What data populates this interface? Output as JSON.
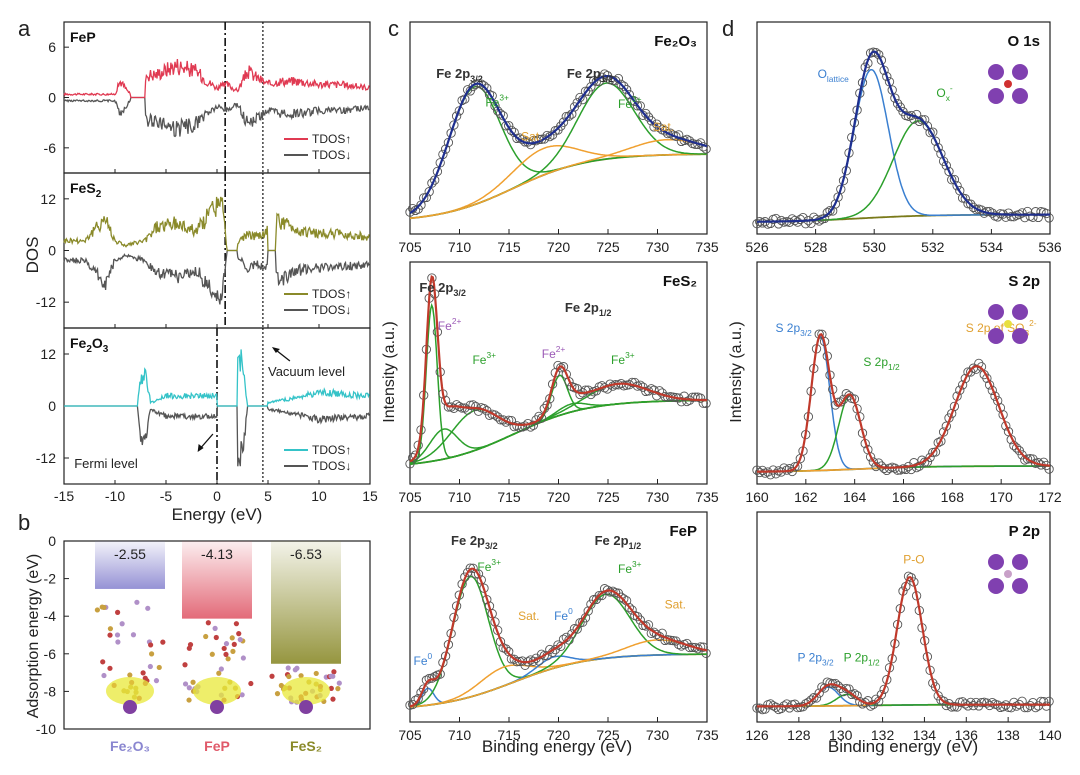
{
  "panel_letters": {
    "a": "a",
    "b": "b",
    "c": "c",
    "d": "d"
  },
  "dos_axis": {
    "ylabel": "DOS",
    "xlabel": "Energy (eV)"
  },
  "xps_axis": {
    "xlabel": "Binding energy (eV)",
    "ylabel": "Intensity (a.u.)"
  },
  "colors": {
    "FeP": "#e03a52",
    "FeS2": "#8a8a2a",
    "Fe2O3": "#35c3c8",
    "down": "#555555",
    "fit_navy": "#1f2f8f",
    "fit_red": "#c0392b",
    "comp_green": "#2ca02c",
    "comp_blue": "#3a7fd0",
    "comp_orange": "#f0a030",
    "bg_olive": "#7a7a1a",
    "lbl_green": "#2ca02c",
    "lbl_orange": "#e0a030",
    "lbl_purple": "#9b59b6",
    "lbl_blue": "#3a7fd0",
    "bar_b1": "#8a86d0",
    "bar_b2": "#e05a6a",
    "bar_b3": "#8a8a2a"
  },
  "chart_data": [
    {
      "id": "a1",
      "type": "line",
      "panel": "a",
      "label": "FeP",
      "xlim": [
        -15,
        15
      ],
      "ylim": [
        -9,
        9
      ],
      "yticks": [
        6,
        0,
        -6
      ],
      "xticks": [],
      "series": [
        {
          "name": "TDOS↑",
          "sign": 1
        },
        {
          "name": "TDOS↓",
          "sign": -1
        }
      ],
      "envelope": {
        "x": [
          -10,
          -9.5,
          -8.5,
          -7,
          -6,
          -4,
          -2,
          -1,
          0,
          1,
          2,
          3,
          4,
          5,
          6,
          8,
          10,
          12,
          15
        ],
        "y": [
          0.5,
          2.5,
          0.5,
          3.5,
          3.5,
          5,
          4,
          2.5,
          1.5,
          2,
          1,
          4,
          3,
          2,
          2.5,
          2.5,
          2,
          2,
          1.5
        ]
      },
      "gaps": [
        [
          -8.5,
          -7
        ]
      ],
      "vlines": [
        0.8,
        4.5
      ]
    },
    {
      "id": "a2",
      "type": "line",
      "panel": "a",
      "label": "FeS2",
      "xlim": [
        -15,
        15
      ],
      "ylim": [
        -18,
        18
      ],
      "yticks": [
        12,
        0,
        -12
      ],
      "xticks": [],
      "series": [
        {
          "name": "TDOS↑",
          "sign": 1
        },
        {
          "name": "TDOS↓",
          "sign": -1
        }
      ],
      "envelope": {
        "x": [
          -13,
          -12,
          -11,
          -10,
          -9,
          -7,
          -6,
          -4,
          -2,
          0,
          0.5,
          1,
          2,
          3,
          4,
          5,
          6,
          8,
          10,
          12,
          15
        ],
        "y": [
          3,
          6,
          10,
          3,
          1.5,
          3,
          7,
          8,
          6,
          14,
          14,
          0,
          2,
          5,
          4,
          6,
          9,
          6,
          5,
          5,
          4
        ]
      },
      "gaps": [
        [
          1,
          2
        ],
        [
          5,
          5.8
        ]
      ],
      "vlines": [
        0.8,
        4.5
      ]
    },
    {
      "id": "a3",
      "type": "line",
      "panel": "a",
      "label": "Fe2O3",
      "xlim": [
        -15,
        15
      ],
      "ylim": [
        -18,
        18
      ],
      "yticks": [
        12,
        0,
        -12
      ],
      "xticks": [
        -15,
        -10,
        -5,
        0,
        5,
        10,
        15
      ],
      "series": [
        {
          "name": "TDOS↑",
          "sign": 1
        },
        {
          "name": "TDOS↓",
          "sign": -1
        }
      ],
      "envelope": {
        "x": [
          -7.8,
          -7.5,
          -7,
          -6.5,
          -5,
          -3,
          -1,
          0,
          2,
          2.5,
          3,
          4,
          5,
          7,
          10,
          15
        ],
        "y": [
          0,
          9,
          9,
          1,
          3,
          3,
          3,
          3,
          14,
          14,
          0,
          0,
          1,
          2,
          4,
          3
        ]
      },
      "gaps": [
        [
          -15,
          -7.8
        ],
        [
          0,
          2
        ],
        [
          3,
          5
        ]
      ],
      "vlines": [
        0,
        4.5
      ],
      "annotations": [
        "Vacuum level",
        "Fermi level"
      ]
    },
    {
      "id": "b",
      "type": "bar",
      "panel": "b",
      "ylabel": "Adsorption energy (eV)",
      "ylim": [
        -10,
        0
      ],
      "yticks": [
        0,
        -2,
        -4,
        -6,
        -8,
        -10
      ],
      "categories": [
        "Fe2O3",
        "FeP",
        "FeS2"
      ],
      "category_labels": [
        "Fe₂O₃",
        "FeP",
        "FeS₂"
      ],
      "value_labels": [
        "-2.55",
        "-4.13",
        "-6.53"
      ],
      "values": [
        -2.55,
        -4.13,
        -6.53
      ]
    },
    {
      "id": "c1",
      "type": "scatter",
      "panel": "c",
      "label": "Fe₂O₃",
      "fit": "navy",
      "xlim": [
        705,
        735
      ],
      "xticks": [
        705,
        710,
        715,
        720,
        725,
        730,
        735
      ],
      "peaks": [
        {
          "c": 711.5,
          "w": 2.6,
          "a": 0.62,
          "color": "green"
        },
        {
          "c": 718.5,
          "w": 3.2,
          "a": 0.14,
          "color": "orange"
        },
        {
          "c": 724.8,
          "w": 2.8,
          "a": 0.4,
          "color": "green"
        },
        {
          "c": 731,
          "w": 3.5,
          "a": 0.08,
          "color": "orange"
        }
      ],
      "bg": {
        "start": 0.02,
        "end": 0.38
      },
      "labels": [
        {
          "text": "Fe 2p",
          "sub": "3/2",
          "x": 710,
          "y": 0.78,
          "color": "#333"
        },
        {
          "text": "Fe",
          "sup": "3+",
          "x": 713.8,
          "y": 0.63,
          "color": "green"
        },
        {
          "text": "Sat.",
          "x": 717.3,
          "y": 0.45,
          "color": "orange"
        },
        {
          "text": "Fe 2p",
          "sub": "1/2",
          "x": 723.2,
          "y": 0.78,
          "color": "#333"
        },
        {
          "text": "Fe",
          "sup": "3+",
          "x": 727.2,
          "y": 0.62,
          "color": "green"
        },
        {
          "text": "Sat.",
          "x": 730.6,
          "y": 0.5,
          "color": "orange"
        }
      ]
    },
    {
      "id": "c2",
      "type": "scatter",
      "panel": "c",
      "label": "FeS₂",
      "fit": "red",
      "xlim": [
        705,
        735
      ],
      "xticks": [
        705,
        710,
        715,
        720,
        725,
        730,
        735
      ],
      "peaks": [
        {
          "c": 707.2,
          "w": 0.55,
          "a": 0.78,
          "color": "green"
        },
        {
          "c": 708.4,
          "w": 1.4,
          "a": 0.15,
          "color": "green"
        },
        {
          "c": 711.5,
          "w": 2.4,
          "a": 0.2,
          "color": "green"
        },
        {
          "c": 720.1,
          "w": 0.8,
          "a": 0.2,
          "color": "green"
        },
        {
          "c": 721.3,
          "w": 1.4,
          "a": 0.04,
          "color": "green"
        },
        {
          "c": 726,
          "w": 3,
          "a": 0.1,
          "color": "green"
        }
      ],
      "bg": {
        "start": 0.04,
        "end": 0.38
      },
      "labels": [
        {
          "text": "Fe 2p",
          "sub": "3/2",
          "x": 708.3,
          "y": 0.92,
          "color": "#333"
        },
        {
          "text": "Fe",
          "sup": "2+",
          "x": 709,
          "y": 0.73,
          "color": "purple"
        },
        {
          "text": "Fe",
          "sup": "3+",
          "x": 712.5,
          "y": 0.56,
          "color": "green"
        },
        {
          "text": "Fe 2p",
          "sub": "1/2",
          "x": 723,
          "y": 0.82,
          "color": "#333"
        },
        {
          "text": "Fe",
          "sup": "2+",
          "x": 719.5,
          "y": 0.59,
          "color": "purple"
        },
        {
          "text": "Fe",
          "sup": "3+",
          "x": 726.5,
          "y": 0.56,
          "color": "green"
        }
      ]
    },
    {
      "id": "c3",
      "type": "scatter",
      "panel": "c",
      "label": "FeP",
      "fit": "red",
      "xlim": [
        705,
        735
      ],
      "xticks": [
        705,
        710,
        715,
        720,
        725,
        730,
        735
      ],
      "peaks": [
        {
          "c": 706.8,
          "w": 0.6,
          "a": 0.09,
          "color": "blue"
        },
        {
          "c": 711.1,
          "w": 1.8,
          "a": 0.64,
          "color": "green"
        },
        {
          "c": 714.4,
          "w": 2.4,
          "a": 0.1,
          "color": "orange"
        },
        {
          "c": 719.5,
          "w": 1.6,
          "a": 0.06,
          "color": "blue"
        },
        {
          "c": 724.8,
          "w": 2.4,
          "a": 0.34,
          "color": "green"
        },
        {
          "c": 730,
          "w": 3,
          "a": 0.08,
          "color": "orange"
        }
      ],
      "bg": {
        "start": 0.02,
        "end": 0.32
      },
      "labels": [
        {
          "text": "Fe 2p",
          "sub": "3/2",
          "x": 711.5,
          "y": 0.9,
          "color": "#333"
        },
        {
          "text": "Fe",
          "sup": "3+",
          "x": 713,
          "y": 0.76,
          "color": "green"
        },
        {
          "text": "Sat.",
          "x": 717,
          "y": 0.5,
          "color": "orange"
        },
        {
          "text": "Fe",
          "sup": "0",
          "x": 720.5,
          "y": 0.5,
          "color": "blue"
        },
        {
          "text": "Fe 2p",
          "sub": "1/2",
          "x": 726,
          "y": 0.9,
          "color": "#333"
        },
        {
          "text": "Fe",
          "sup": "3+",
          "x": 727.2,
          "y": 0.75,
          "color": "green"
        },
        {
          "text": "Sat.",
          "x": 731.8,
          "y": 0.56,
          "color": "orange"
        },
        {
          "text": "Fe",
          "sup": "0",
          "x": 706.3,
          "y": 0.26,
          "color": "blue"
        }
      ]
    },
    {
      "id": "d1",
      "type": "scatter",
      "panel": "d",
      "label": "O 1s",
      "fit": "navy",
      "xlim": [
        526,
        536
      ],
      "xticks": [
        526,
        528,
        530,
        532,
        534,
        536
      ],
      "peaks": [
        {
          "c": 529.9,
          "w": 0.58,
          "a": 0.78,
          "color": "blue"
        },
        {
          "c": 531.5,
          "w": 0.85,
          "a": 0.5,
          "color": "green"
        }
      ],
      "bg": {
        "start": 0.02,
        "end": 0.06
      },
      "labels": [
        {
          "text": "O",
          "sub": "lattice",
          "x": 528.6,
          "y": 0.78,
          "color": "blue"
        },
        {
          "text": "O",
          "sub": "x",
          "sup": "-",
          "x": 532.4,
          "y": 0.68,
          "color": "green"
        }
      ]
    },
    {
      "id": "d2",
      "type": "scatter",
      "panel": "d",
      "label": "S 2p",
      "fit": "red",
      "xlim": [
        160,
        172
      ],
      "xticks": [
        160,
        162,
        164,
        166,
        168,
        170,
        172
      ],
      "peaks": [
        {
          "c": 162.6,
          "w": 0.38,
          "a": 0.67,
          "color": "blue"
        },
        {
          "c": 163.8,
          "w": 0.45,
          "a": 0.37,
          "color": "green"
        },
        {
          "c": 169,
          "w": 0.9,
          "a": 0.5,
          "color": "orange"
        }
      ],
      "bg": {
        "start": 0.02,
        "end": 0.05
      },
      "labels": [
        {
          "text": "S 2p",
          "sub": "3/2",
          "x": 161.5,
          "y": 0.72,
          "color": "blue"
        },
        {
          "text": "S 2p",
          "sub": "1/2",
          "x": 165.1,
          "y": 0.55,
          "color": "green"
        },
        {
          "text": "S 2p of SO",
          "sub": "3",
          "sup": "2-",
          "x": 170,
          "y": 0.72,
          "color": "orange"
        }
      ]
    },
    {
      "id": "d3",
      "type": "scatter",
      "panel": "d",
      "label": "P 2p",
      "fit": "red",
      "xlim": [
        126,
        140
      ],
      "xticks": [
        126,
        128,
        130,
        132,
        134,
        136,
        138,
        140
      ],
      "peaks": [
        {
          "c": 129.4,
          "w": 0.5,
          "a": 0.1,
          "color": "blue"
        },
        {
          "c": 130.3,
          "w": 0.5,
          "a": 0.06,
          "color": "green"
        },
        {
          "c": 133.3,
          "w": 0.6,
          "a": 0.68,
          "color": "orange"
        }
      ],
      "bg": {
        "start": 0.04,
        "end": 0.05
      },
      "labels": [
        {
          "text": "P 2p",
          "sub": "3/2",
          "x": 128.8,
          "y": 0.28,
          "color": "blue"
        },
        {
          "text": "P 2p",
          "sub": "1/2",
          "x": 131,
          "y": 0.28,
          "color": "green"
        },
        {
          "text": "P-O",
          "x": 133.5,
          "y": 0.8,
          "color": "orange"
        }
      ]
    }
  ]
}
